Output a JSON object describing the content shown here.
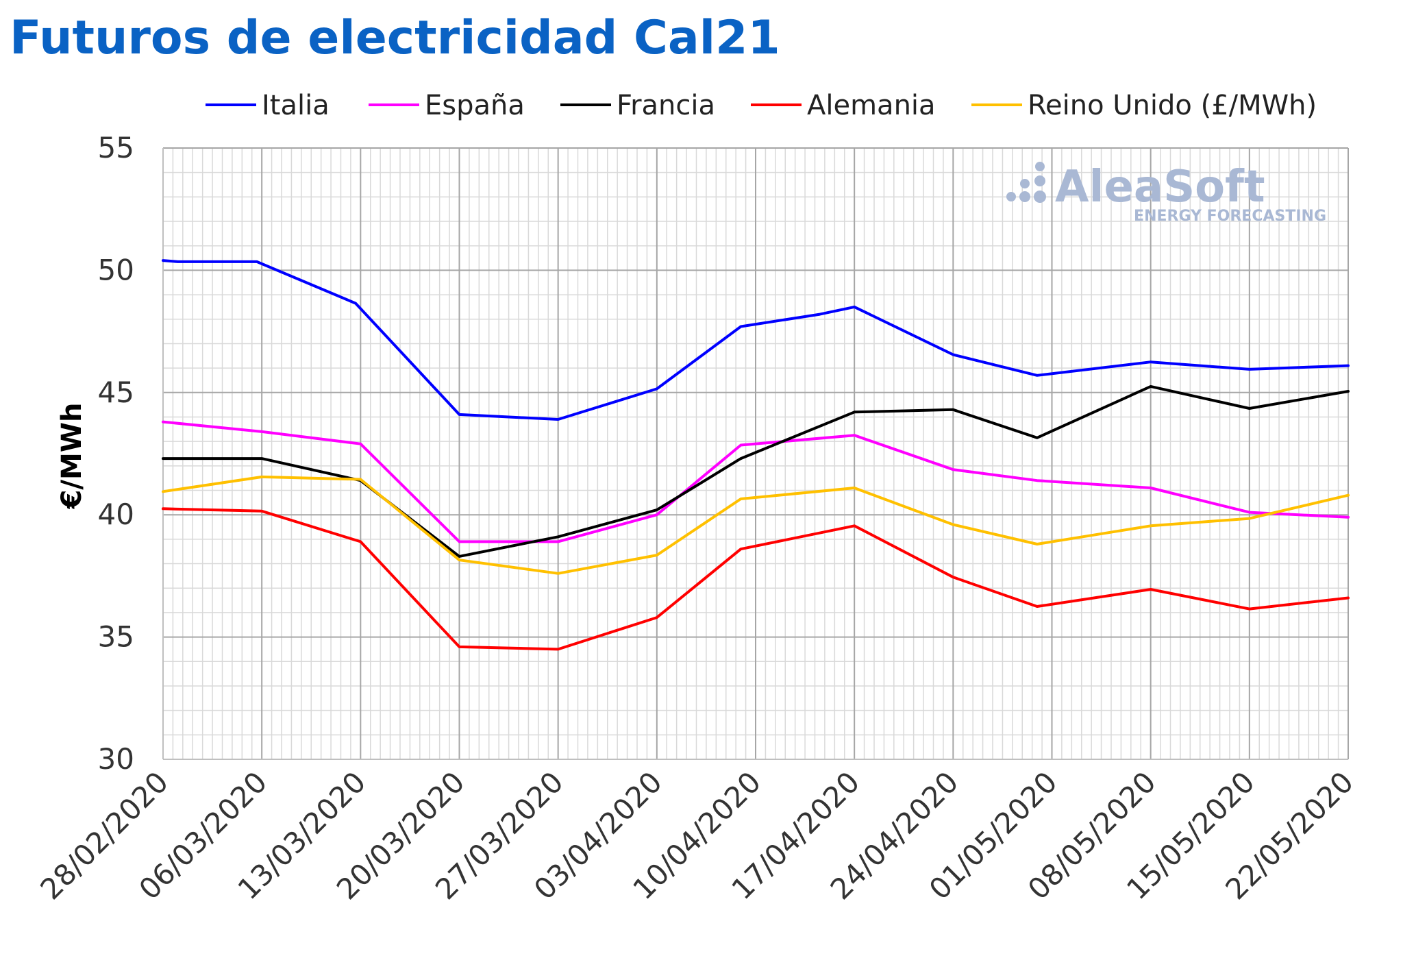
{
  "chart_data": {
    "type": "line",
    "title": "Futuros de electricidad Cal21",
    "ylabel": "€/MWh",
    "xlabel": "",
    "ylim": [
      30,
      55
    ],
    "yticks": [
      30,
      35,
      40,
      45,
      50,
      55
    ],
    "categories": [
      "28/02/2020",
      "06/03/2020",
      "13/03/2020",
      "20/03/2020",
      "27/03/2020",
      "03/04/2020",
      "10/04/2020",
      "17/04/2020",
      "24/04/2020",
      "01/05/2020",
      "08/05/2020",
      "15/05/2020",
      "22/05/2020"
    ],
    "grid": true,
    "legend_position": "top",
    "series": [
      {
        "name": "Italia",
        "color": "#0000ff",
        "points": [
          [
            0,
            50.4
          ],
          [
            0.15,
            50.35
          ],
          [
            0.95,
            50.35
          ],
          [
            1.95,
            48.65
          ],
          [
            3,
            44.1
          ],
          [
            4,
            43.9
          ],
          [
            5,
            45.15
          ],
          [
            5.85,
            47.7
          ],
          [
            6.65,
            48.2
          ],
          [
            7,
            48.5
          ],
          [
            8,
            46.55
          ],
          [
            8.85,
            45.7
          ],
          [
            10,
            46.25
          ],
          [
            11,
            45.95
          ],
          [
            12,
            46.1
          ]
        ]
      },
      {
        "name": "España",
        "color": "#ff00ff",
        "points": [
          [
            0,
            43.8
          ],
          [
            1,
            43.4
          ],
          [
            2,
            42.9
          ],
          [
            3,
            38.9
          ],
          [
            4,
            38.9
          ],
          [
            5,
            40.0
          ],
          [
            5.85,
            42.85
          ],
          [
            7,
            43.25
          ],
          [
            8,
            41.85
          ],
          [
            8.85,
            41.4
          ],
          [
            10,
            41.1
          ],
          [
            11,
            40.1
          ],
          [
            12,
            39.9
          ]
        ]
      },
      {
        "name": "Francia",
        "color": "#000000",
        "points": [
          [
            0,
            42.3
          ],
          [
            1,
            42.3
          ],
          [
            2,
            41.4
          ],
          [
            3,
            38.3
          ],
          [
            4,
            39.1
          ],
          [
            5,
            40.2
          ],
          [
            5.85,
            42.3
          ],
          [
            7,
            44.2
          ],
          [
            8,
            44.3
          ],
          [
            8.85,
            43.15
          ],
          [
            10,
            45.25
          ],
          [
            11,
            44.35
          ],
          [
            12,
            45.05
          ]
        ]
      },
      {
        "name": "Alemania",
        "color": "#ff0000",
        "points": [
          [
            0,
            40.25
          ],
          [
            1,
            40.15
          ],
          [
            2,
            38.9
          ],
          [
            3,
            34.6
          ],
          [
            4,
            34.5
          ],
          [
            5,
            35.8
          ],
          [
            5.85,
            38.6
          ],
          [
            7,
            39.55
          ],
          [
            8,
            37.45
          ],
          [
            8.85,
            36.25
          ],
          [
            10,
            36.95
          ],
          [
            11,
            36.15
          ],
          [
            12,
            36.6
          ]
        ]
      },
      {
        "name": "Reino Unido (£/MWh)",
        "color": "#ffc000",
        "points": [
          [
            0,
            40.95
          ],
          [
            1,
            41.55
          ],
          [
            2,
            41.45
          ],
          [
            3,
            38.15
          ],
          [
            4,
            37.6
          ],
          [
            5,
            38.35
          ],
          [
            5.85,
            40.65
          ],
          [
            7,
            41.1
          ],
          [
            8,
            39.6
          ],
          [
            8.85,
            38.8
          ],
          [
            10,
            39.55
          ],
          [
            11,
            39.85
          ],
          [
            12,
            40.8
          ]
        ]
      }
    ]
  },
  "watermark": {
    "brand": "AleaSoft",
    "tagline": "ENERGY FORECASTING"
  }
}
